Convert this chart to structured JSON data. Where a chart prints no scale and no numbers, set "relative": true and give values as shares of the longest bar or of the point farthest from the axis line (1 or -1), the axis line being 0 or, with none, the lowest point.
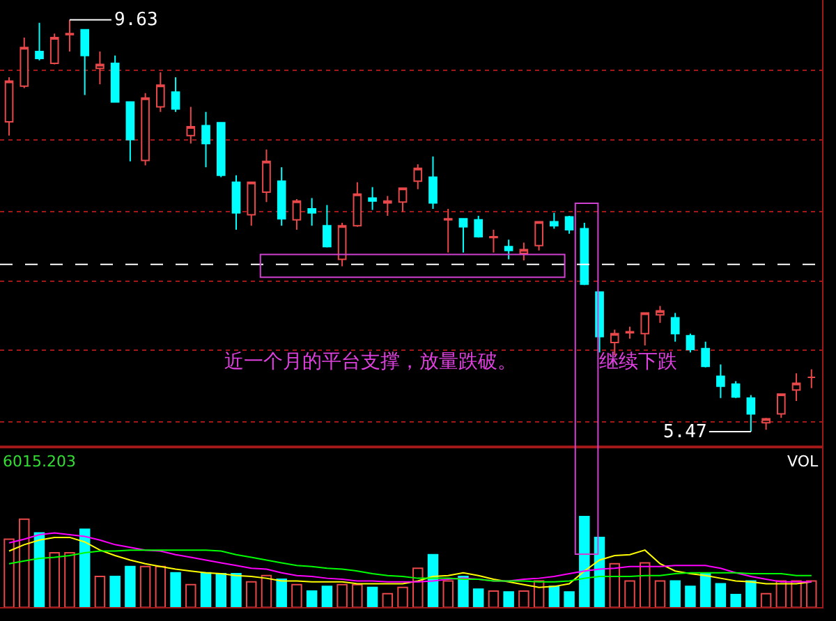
{
  "chart_data": [
    {
      "type": "candlestick",
      "categories": [
        null,
        null,
        null,
        null,
        null,
        null,
        null,
        null,
        null,
        null,
        null,
        null,
        null,
        null,
        null,
        null,
        null,
        null,
        null,
        null,
        null,
        null,
        null,
        null,
        null,
        null,
        null,
        null,
        null,
        null,
        null,
        null,
        null,
        null,
        null,
        null,
        null,
        null,
        null,
        null,
        null,
        null,
        null,
        null,
        null,
        null,
        null,
        null,
        null,
        null,
        null,
        null,
        null,
        null
      ],
      "ohlc": [
        [
          8.6,
          9.05,
          8.46,
          9.01
        ],
        [
          8.96,
          9.45,
          8.94,
          9.35
        ],
        [
          9.31,
          9.6,
          9.22,
          9.24
        ],
        [
          9.19,
          9.49,
          9.18,
          9.45
        ],
        [
          9.48,
          9.63,
          9.31,
          9.49
        ],
        [
          9.53,
          9.53,
          8.87,
          9.27
        ],
        [
          9.14,
          9.31,
          8.98,
          9.18
        ],
        [
          9.19,
          9.27,
          8.8,
          8.8
        ],
        [
          8.8,
          8.8,
          8.2,
          8.42
        ],
        [
          8.21,
          8.89,
          8.16,
          8.84
        ],
        [
          8.75,
          9.1,
          8.7,
          8.97
        ],
        [
          8.9,
          9.05,
          8.7,
          8.73
        ],
        [
          8.46,
          8.75,
          8.38,
          8.55
        ],
        [
          8.56,
          8.7,
          8.14,
          8.38
        ],
        [
          8.59,
          8.59,
          8.04,
          8.06
        ],
        [
          7.99,
          8.06,
          7.51,
          7.68
        ],
        [
          7.66,
          7.99,
          7.55,
          7.99
        ],
        [
          7.89,
          8.32,
          7.79,
          8.2
        ],
        [
          8.0,
          8.14,
          7.55,
          7.62
        ],
        [
          7.61,
          7.82,
          7.51,
          7.8
        ],
        [
          7.72,
          7.83,
          7.55,
          7.68
        ],
        [
          7.55,
          7.76,
          7.33,
          7.34
        ],
        [
          7.21,
          7.58,
          7.14,
          7.55
        ],
        [
          7.55,
          7.99,
          7.54,
          7.87
        ],
        [
          7.83,
          7.94,
          7.71,
          7.8
        ],
        [
          7.78,
          7.85,
          7.65,
          7.8
        ],
        [
          7.79,
          7.93,
          7.69,
          7.93
        ],
        [
          8.0,
          8.17,
          7.92,
          8.13
        ],
        [
          8.04,
          8.25,
          7.72,
          7.78
        ],
        [
          7.61,
          7.72,
          7.28,
          7.62
        ],
        [
          7.62,
          7.62,
          7.28,
          7.54
        ],
        [
          7.61,
          7.65,
          7.43,
          7.44
        ],
        [
          7.43,
          7.51,
          7.28,
          7.44
        ],
        [
          7.34,
          7.41,
          7.21,
          7.3
        ],
        [
          7.27,
          7.38,
          7.2,
          7.31
        ],
        [
          7.35,
          7.59,
          7.3,
          7.59
        ],
        [
          7.59,
          7.68,
          7.52,
          7.55
        ],
        [
          7.64,
          7.65,
          7.47,
          7.51
        ],
        [
          7.52,
          7.58,
          6.95,
          6.96
        ],
        [
          6.88,
          6.88,
          6.27,
          6.43
        ],
        [
          6.37,
          6.5,
          6.24,
          6.46
        ],
        [
          6.47,
          6.53,
          6.41,
          6.48
        ],
        [
          6.46,
          6.67,
          6.34,
          6.67
        ],
        [
          6.65,
          6.74,
          6.57,
          6.69
        ],
        [
          6.62,
          6.67,
          6.38,
          6.46
        ],
        [
          6.44,
          6.46,
          6.27,
          6.3
        ],
        [
          6.31,
          6.38,
          6.12,
          6.13
        ],
        [
          6.03,
          6.15,
          5.81,
          5.93
        ],
        [
          5.95,
          5.98,
          5.81,
          5.82
        ],
        [
          5.81,
          5.84,
          5.47,
          5.65
        ],
        [
          5.56,
          5.61,
          5.49,
          5.6
        ],
        [
          5.65,
          5.85,
          5.61,
          5.85
        ],
        [
          5.89,
          6.06,
          5.78,
          5.96
        ],
        [
          6.02,
          6.1,
          5.91,
          6.02
        ]
      ],
      "colors": [
        "#e8484a",
        "#e8484a",
        "#00ffff",
        "#e8484a",
        "#e8484a",
        "#00ffff",
        "#e8484a",
        "#00ffff",
        "#00ffff",
        "#e8484a",
        "#e8484a",
        "#00ffff",
        "#e8484a",
        "#00ffff",
        "#00ffff",
        "#00ffff",
        "#e8484a",
        "#e8484a",
        "#00ffff",
        "#e8484a",
        "#00ffff",
        "#00ffff",
        "#e8484a",
        "#e8484a",
        "#00ffff",
        "#e8484a",
        "#e8484a",
        "#e8484a",
        "#00ffff",
        "#e8484a",
        "#00ffff",
        "#00ffff",
        "#e8484a",
        "#00ffff",
        "#e8484a",
        "#e8484a",
        "#00ffff",
        "#00ffff",
        "#00ffff",
        "#00ffff",
        "#e8484a",
        "#e8484a",
        "#e8484a",
        "#e8484a",
        "#00ffff",
        "#00ffff",
        "#00ffff",
        "#00ffff",
        "#00ffff",
        "#00ffff",
        "#e8484a",
        "#e8484a",
        "#e8484a",
        "#e8484a"
      ],
      "ylim": [
        5.33,
        9.83
      ],
      "yticks": [
        {
          "value": 5.57,
          "label": null
        },
        {
          "value": 6.29,
          "label": null
        },
        {
          "value": 6.99,
          "label": null
        },
        {
          "value": 7.69,
          "label": null
        },
        {
          "value": 8.42,
          "label": null
        },
        {
          "value": 9.12,
          "label": null
        }
      ],
      "grid": "y",
      "ref_lines": [
        {
          "axis": "y",
          "value": 7.16,
          "color": "#ffffff",
          "line_style": "dashed"
        }
      ],
      "annotations": [
        "9.63",
        "5.47",
        "近一个月的平台支撑，放量跌破。",
        "继续下跌"
      ]
    },
    {
      "type": "bar",
      "relative": true,
      "categories": [
        null,
        null,
        null,
        null,
        null,
        null,
        null,
        null,
        null,
        null,
        null,
        null,
        null,
        null,
        null,
        null,
        null,
        null,
        null,
        null,
        null,
        null,
        null,
        null,
        null,
        null,
        null,
        null,
        null,
        null,
        null,
        null,
        null,
        null,
        null,
        null,
        null,
        null,
        null,
        null,
        null,
        null,
        null,
        null,
        null,
        null,
        null,
        null,
        null,
        null,
        null,
        null,
        null,
        null
      ],
      "series": [
        {
          "type": "bar",
          "values": [
            0.75,
            0.97,
            0.82,
            0.6,
            0.6,
            0.86,
            0.34,
            0.34,
            0.45,
            0.45,
            0.45,
            0.38,
            0.25,
            0.38,
            0.37,
            0.37,
            0.28,
            0.35,
            0.31,
            0.25,
            0.18,
            0.23,
            0.25,
            0.25,
            0.22,
            0.15,
            0.22,
            0.43,
            0.58,
            0.29,
            0.34,
            0.2,
            0.18,
            0.17,
            0.18,
            0.29,
            0.23,
            0.17,
            1,
            0.77,
            0.48,
            0.29,
            0.49,
            0.29,
            0.29,
            0.23,
            0.37,
            0.26,
            0.14,
            0.29,
            0.15,
            0.29,
            0.29,
            0.29
          ],
          "colors": [
            "#e8484a",
            "#e8484a",
            "#00ffff",
            "#e8484a",
            "#e8484a",
            "#00ffff",
            "#e8484a",
            "#00ffff",
            "#00ffff",
            "#e8484a",
            "#e8484a",
            "#00ffff",
            "#e8484a",
            "#00ffff",
            "#00ffff",
            "#00ffff",
            "#e8484a",
            "#e8484a",
            "#00ffff",
            "#e8484a",
            "#00ffff",
            "#00ffff",
            "#e8484a",
            "#e8484a",
            "#00ffff",
            "#e8484a",
            "#e8484a",
            "#e8484a",
            "#00ffff",
            "#e8484a",
            "#00ffff",
            "#00ffff",
            "#e8484a",
            "#00ffff",
            "#e8484a",
            "#e8484a",
            "#00ffff",
            "#00ffff",
            "#00ffff",
            "#00ffff",
            "#e8484a",
            "#e8484a",
            "#e8484a",
            "#e8484a",
            "#00ffff",
            "#00ffff",
            "#00ffff",
            "#00ffff",
            "#00ffff",
            "#00ffff",
            "#e8484a",
            "#e8484a",
            "#e8484a",
            "#e8484a"
          ]
        },
        {
          "type": "line",
          "color": "#ffff00",
          "values": [
            0.62,
            0.69,
            0.74,
            0.77,
            0.77,
            0.72,
            0.63,
            0.57,
            0.52,
            0.48,
            0.45,
            0.42,
            0.4,
            0.38,
            0.37,
            0.35,
            0.34,
            0.32,
            0.29,
            0.29,
            0.28,
            0.28,
            0.28,
            0.26,
            0.26,
            0.26,
            0.26,
            0.29,
            0.34,
            0.35,
            0.38,
            0.35,
            0.31,
            0.28,
            0.25,
            0.22,
            0.23,
            0.26,
            0.4,
            0.52,
            0.57,
            0.58,
            0.63,
            0.48,
            0.4,
            0.37,
            0.35,
            0.32,
            0.29,
            0.28,
            0.26,
            0.26,
            0.26,
            0.28
          ]
        },
        {
          "type": "line",
          "color": "#ff00ff",
          "values": [
            0.71,
            0.75,
            0.8,
            0.82,
            0.8,
            0.78,
            0.74,
            0.69,
            0.66,
            0.63,
            0.62,
            0.58,
            0.55,
            0.52,
            0.49,
            0.46,
            0.43,
            0.42,
            0.38,
            0.35,
            0.34,
            0.32,
            0.31,
            0.29,
            0.29,
            0.28,
            0.28,
            0.28,
            0.29,
            0.31,
            0.32,
            0.31,
            0.29,
            0.29,
            0.31,
            0.32,
            0.34,
            0.37,
            0.4,
            0.42,
            0.43,
            0.45,
            0.45,
            0.45,
            0.46,
            0.46,
            0.46,
            0.43,
            0.38,
            0.34,
            0.31,
            0.28,
            0.28,
            0.28
          ]
        },
        {
          "type": "line",
          "color": "#00ff00",
          "values": [
            0.48,
            0.51,
            0.54,
            0.55,
            0.57,
            0.6,
            0.62,
            0.62,
            0.63,
            0.63,
            0.63,
            0.63,
            0.63,
            0.63,
            0.62,
            0.58,
            0.55,
            0.52,
            0.49,
            0.46,
            0.45,
            0.43,
            0.42,
            0.4,
            0.37,
            0.35,
            0.34,
            0.32,
            0.32,
            0.32,
            0.31,
            0.31,
            0.29,
            0.29,
            0.29,
            0.28,
            0.28,
            0.29,
            0.32,
            0.34,
            0.34,
            0.34,
            0.35,
            0.35,
            0.37,
            0.38,
            0.38,
            0.38,
            0.38,
            0.37,
            0.37,
            0.37,
            0.35,
            0.35
          ]
        }
      ],
      "annotations": [
        "6015.203",
        "VOL"
      ]
    }
  ]
}
